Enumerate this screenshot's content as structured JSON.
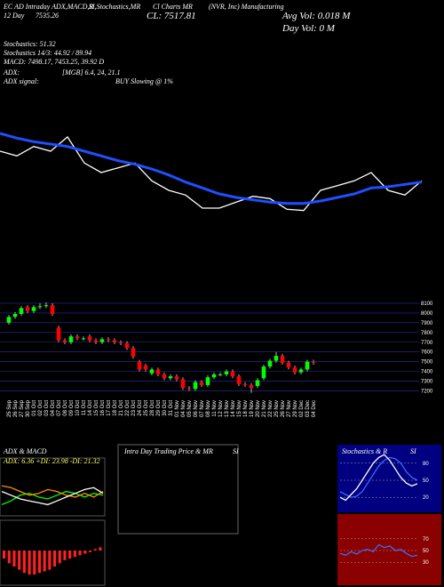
{
  "header": {
    "texts": [
      "EC AD Intraday ADX,MACD,R",
      "SI,Stochastics,MR",
      "Cl Charts MR",
      "(NVR, Inc) Manufacturing",
      "12 Day",
      "7535.26",
      "CL: 7517.81",
      "Avg Vol: 0.018  M",
      "Day Vol: 0  M",
      "Stochastics: 51.32",
      "Stochastics 14/3: 44.92 / 89.94",
      "MACD: 7498.17, 7453.25, 39.92 D",
      "ADX:",
      "[MGB] 6.4, 24, 21.1",
      "ADX  signal:",
      "BUY Slowing @ 1%"
    ]
  },
  "panels": {
    "titles": [
      "ADX & MACD",
      "ADX: 6.36 +DI: 23.98 -DI: 21.32",
      "Intra Day Trading Price & MR",
      "SI",
      "Stochastics & R",
      "SI"
    ]
  },
  "chart_data": [
    {
      "type": "line",
      "ylim": [
        7200,
        8100
      ],
      "series": [
        {
          "color": "#ffffff",
          "values": [
            7800,
            7760,
            7840,
            7800,
            7920,
            7700,
            7620,
            7660,
            7700,
            7550,
            7470,
            7430,
            7320,
            7320,
            7370,
            7420,
            7400,
            7310,
            7300,
            7470,
            7510,
            7550,
            7620,
            7470,
            7430,
            7550
          ]
        },
        {
          "color": "#1f4fff",
          "values": [
            7950,
            7910,
            7880,
            7860,
            7840,
            7800,
            7760,
            7720,
            7690,
            7650,
            7600,
            7540,
            7490,
            7440,
            7410,
            7390,
            7370,
            7360,
            7360,
            7380,
            7410,
            7440,
            7490,
            7500,
            7520,
            7540
          ]
        }
      ]
    },
    {
      "type": "candlestick",
      "ylim": [
        7150,
        8200
      ],
      "yticks": [
        7200,
        7300,
        7400,
        7500,
        7600,
        7700,
        7800,
        7900,
        8000,
        8100
      ],
      "up_color": "#00ff00",
      "down_color": "#ff0000",
      "categories": [
        "25 Sep",
        "26 Sep",
        "27 Sep",
        "30 Sep",
        "01 Oct",
        "02 Oct",
        "03 Oct",
        "04 Oct",
        "07 Oct",
        "08 Oct",
        "09 Oct",
        "10 Oct",
        "11 Oct",
        "14 Oct",
        "15 Oct",
        "16 Oct",
        "17 Oct",
        "18 Oct",
        "21 Oct",
        "22 Oct",
        "23 Oct",
        "24 Oct",
        "25 Oct",
        "28 Oct",
        "29 Oct",
        "30 Oct",
        "31 Oct",
        "01 Nov",
        "04 Nov",
        "05 Nov",
        "06 Nov",
        "07 Nov",
        "08 Nov",
        "11 Nov",
        "12 Nov",
        "13 Nov",
        "14 Nov",
        "15 Nov",
        "18 Nov",
        "19 Nov",
        "20 Nov",
        "21 Nov",
        "22 Nov",
        "25 Nov",
        "26 Nov",
        "27 Nov",
        "29 Nov",
        "02 Dec",
        "03 Dec",
        "04 Dec"
      ],
      "open": [
        7900,
        7960,
        7990,
        8060,
        8020,
        8060,
        8070,
        8080,
        7850,
        7720,
        7700,
        7760,
        7740,
        7760,
        7720,
        7700,
        7730,
        7720,
        7700,
        7690,
        7640,
        7500,
        7460,
        7380,
        7420,
        7370,
        7330,
        7350,
        7320,
        7230,
        7220,
        7290,
        7260,
        7340,
        7370,
        7370,
        7400,
        7350,
        7270,
        7260,
        7250,
        7330,
        7450,
        7510,
        7560,
        7490,
        7440,
        7390,
        7420,
        7500
      ],
      "high": [
        7980,
        8010,
        8070,
        8080,
        8080,
        8100,
        8110,
        8100,
        7870,
        7740,
        7780,
        7780,
        7760,
        7780,
        7740,
        7750,
        7750,
        7740,
        7720,
        7710,
        7660,
        7520,
        7480,
        7440,
        7440,
        7390,
        7370,
        7370,
        7340,
        7250,
        7310,
        7310,
        7360,
        7390,
        7390,
        7420,
        7420,
        7370,
        7290,
        7280,
        7330,
        7470,
        7530,
        7600,
        7580,
        7510,
        7460,
        7440,
        7520,
        7520
      ],
      "low": [
        7880,
        7940,
        7970,
        8000,
        8000,
        8040,
        8050,
        7970,
        7700,
        7680,
        7680,
        7720,
        7720,
        7700,
        7680,
        7680,
        7700,
        7680,
        7670,
        7620,
        7530,
        7400,
        7400,
        7360,
        7350,
        7310,
        7310,
        7300,
        7210,
        7200,
        7200,
        7240,
        7240,
        7320,
        7350,
        7350,
        7330,
        7250,
        7240,
        7180,
        7230,
        7310,
        7430,
        7490,
        7470,
        7420,
        7370,
        7370,
        7400,
        7470
      ],
      "close": [
        7960,
        7990,
        8050,
        8020,
        8060,
        8070,
        8080,
        7990,
        7720,
        7700,
        7760,
        7740,
        7740,
        7720,
        7700,
        7730,
        7720,
        7700,
        7690,
        7640,
        7550,
        7420,
        7420,
        7420,
        7370,
        7330,
        7350,
        7320,
        7230,
        7220,
        7290,
        7260,
        7340,
        7370,
        7370,
        7400,
        7350,
        7270,
        7260,
        7230,
        7310,
        7450,
        7510,
        7560,
        7490,
        7440,
        7390,
        7420,
        7500,
        7490
      ]
    },
    {
      "type": "line",
      "ylim": [
        0,
        50
      ],
      "series": [
        {
          "color": "#00ff00",
          "values": [
            10,
            14,
            20,
            22,
            18,
            16,
            20,
            24,
            22,
            18,
            22,
            20
          ]
        },
        {
          "color": "#ff8c00",
          "values": [
            30,
            28,
            24,
            20,
            22,
            26,
            24,
            20,
            18,
            22,
            18,
            24
          ]
        },
        {
          "color": "#ffffff",
          "values": [
            24,
            20,
            16,
            14,
            12,
            10,
            14,
            18,
            22,
            26,
            28,
            22
          ]
        }
      ]
    },
    {
      "type": "bar",
      "ylim": [
        -20,
        15
      ],
      "color": "#ff2020",
      "values": [
        -5,
        -8,
        -10,
        -12,
        -14,
        -15,
        -15,
        -14,
        -13,
        -12,
        -10,
        -8,
        -6,
        -5,
        -4,
        -3,
        -2,
        -1,
        1,
        2
      ]
    },
    {
      "type": "line",
      "ylim": [
        0,
        100
      ],
      "yticks": [
        20,
        50,
        80
      ],
      "series": [
        {
          "color": "#3a6bff",
          "values": [
            30,
            25,
            20,
            22,
            30,
            45,
            60,
            75,
            85,
            90,
            88,
            80,
            65,
            55,
            50
          ]
        },
        {
          "color": "#ffffff",
          "values": [
            20,
            15,
            25,
            35,
            50,
            65,
            80,
            90,
            95,
            85,
            70,
            55,
            45,
            40,
            44
          ]
        }
      ]
    },
    {
      "type": "line",
      "ylim": [
        0,
        100
      ],
      "yticks": [
        30,
        50,
        70
      ],
      "series": [
        {
          "color": "#3a6bff",
          "values": [
            45,
            42,
            48,
            44,
            50,
            52,
            48,
            60,
            55,
            58,
            50,
            52,
            45,
            40,
            42
          ]
        }
      ]
    }
  ]
}
